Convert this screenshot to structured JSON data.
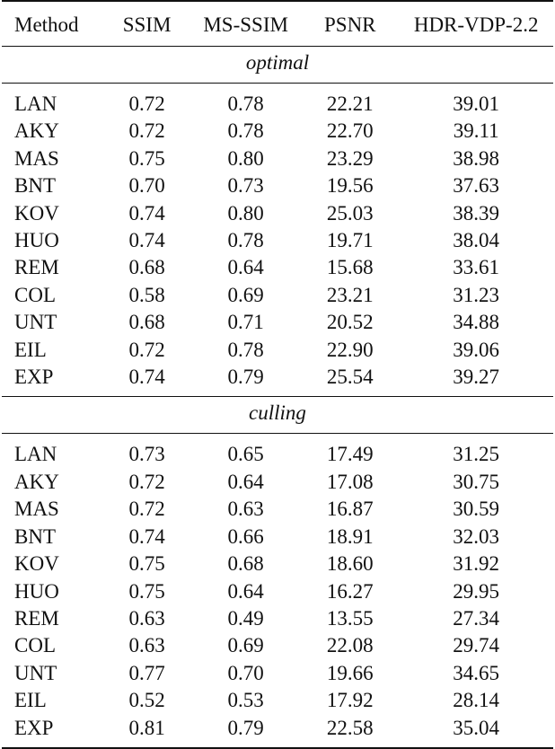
{
  "columns": [
    "Method",
    "SSIM",
    "MS-SSIM",
    "PSNR",
    "HDR-VDP-2.2"
  ],
  "sections": [
    {
      "label": "optimal",
      "rows": [
        {
          "method": "LAN",
          "ssim": "0.72",
          "msssim": "0.78",
          "psnr": "22.21",
          "hdr": "39.01",
          "bold": []
        },
        {
          "method": "AKY",
          "ssim": "0.72",
          "msssim": "0.78",
          "psnr": "22.70",
          "hdr": "39.11",
          "bold": []
        },
        {
          "method": "MAS",
          "ssim": "0.75",
          "msssim": "0.80",
          "psnr": "23.29",
          "hdr": "38.98",
          "bold": [
            "ssim",
            "msssim"
          ]
        },
        {
          "method": "BNT",
          "ssim": "0.70",
          "msssim": "0.73",
          "psnr": "19.56",
          "hdr": "37.63",
          "bold": []
        },
        {
          "method": "KOV",
          "ssim": "0.74",
          "msssim": "0.80",
          "psnr": "25.03",
          "hdr": "38.39",
          "bold": [
            "msssim"
          ]
        },
        {
          "method": "HUO",
          "ssim": "0.74",
          "msssim": "0.78",
          "psnr": "19.71",
          "hdr": "38.04",
          "bold": []
        },
        {
          "method": "REM",
          "ssim": "0.68",
          "msssim": "0.64",
          "psnr": "15.68",
          "hdr": "33.61",
          "bold": []
        },
        {
          "method": "COL",
          "ssim": "0.58",
          "msssim": "0.69",
          "psnr": "23.21",
          "hdr": "31.23",
          "bold": []
        },
        {
          "method": "UNT",
          "ssim": "0.68",
          "msssim": "0.71",
          "psnr": "20.52",
          "hdr": "34.88",
          "bold": []
        },
        {
          "method": "EIL",
          "ssim": "0.72",
          "msssim": "0.78",
          "psnr": "22.90",
          "hdr": "39.06",
          "bold": []
        },
        {
          "method": "EXP",
          "ssim": "0.74",
          "msssim": "0.79",
          "psnr": "25.54",
          "hdr": "39.27",
          "bold": [
            "psnr",
            "hdr"
          ]
        }
      ]
    },
    {
      "label": "culling",
      "rows": [
        {
          "method": "LAN",
          "ssim": "0.73",
          "msssim": "0.65",
          "psnr": "17.49",
          "hdr": "31.25",
          "bold": []
        },
        {
          "method": "AKY",
          "ssim": "0.72",
          "msssim": "0.64",
          "psnr": "17.08",
          "hdr": "30.75",
          "bold": []
        },
        {
          "method": "MAS",
          "ssim": "0.72",
          "msssim": "0.63",
          "psnr": "16.87",
          "hdr": "30.59",
          "bold": []
        },
        {
          "method": "BNT",
          "ssim": "0.74",
          "msssim": "0.66",
          "psnr": "18.91",
          "hdr": "32.03",
          "bold": []
        },
        {
          "method": "KOV",
          "ssim": "0.75",
          "msssim": "0.68",
          "psnr": "18.60",
          "hdr": "31.92",
          "bold": []
        },
        {
          "method": "HUO",
          "ssim": "0.75",
          "msssim": "0.64",
          "psnr": "16.27",
          "hdr": "29.95",
          "bold": []
        },
        {
          "method": "REM",
          "ssim": "0.63",
          "msssim": "0.49",
          "psnr": "13.55",
          "hdr": "27.34",
          "bold": []
        },
        {
          "method": "COL",
          "ssim": "0.63",
          "msssim": "0.69",
          "psnr": "22.08",
          "hdr": "29.74",
          "bold": []
        },
        {
          "method": "UNT",
          "ssim": "0.77",
          "msssim": "0.70",
          "psnr": "19.66",
          "hdr": "34.65",
          "bold": []
        },
        {
          "method": "EIL",
          "ssim": "0.52",
          "msssim": "0.53",
          "psnr": "17.92",
          "hdr": "28.14",
          "bold": []
        },
        {
          "method": "EXP",
          "ssim": "0.81",
          "msssim": "0.79",
          "psnr": "22.58",
          "hdr": "35.04",
          "bold": [
            "ssim",
            "msssim",
            "hdr"
          ]
        }
      ]
    }
  ]
}
